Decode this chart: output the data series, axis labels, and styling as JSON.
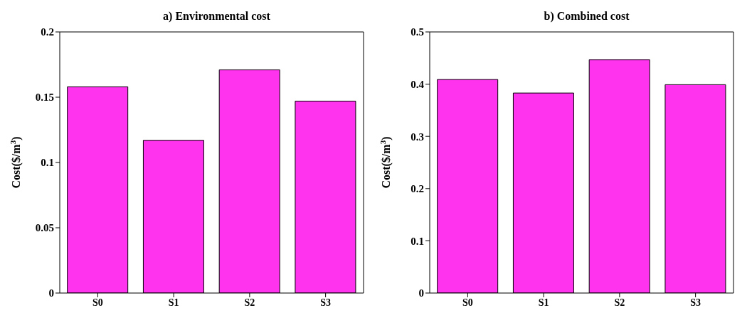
{
  "chart_data": [
    {
      "type": "bar",
      "title": "a) Environmental cost",
      "ylabel": "Cost($/m$^{3}$)",
      "categories": [
        "S0",
        "S1",
        "S2",
        "S3"
      ],
      "values": [
        0.158,
        0.117,
        0.171,
        0.147
      ],
      "color": "#ff33ee",
      "ylim": [
        0,
        0.2
      ],
      "yticks": [
        0,
        0.05,
        0.1,
        0.15,
        0.2
      ],
      "grid": false
    },
    {
      "type": "bar",
      "title": "b) Combined cost",
      "ylabel": "Cost($/m$^{3}$)",
      "categories": [
        "S0",
        "S1",
        "S2",
        "S3"
      ],
      "values": [
        0.409,
        0.383,
        0.447,
        0.399
      ],
      "color": "#ff33ee",
      "ylim": [
        0,
        0.5
      ],
      "yticks": [
        0,
        0.1,
        0.2,
        0.3,
        0.4,
        0.5
      ],
      "grid": false
    }
  ]
}
